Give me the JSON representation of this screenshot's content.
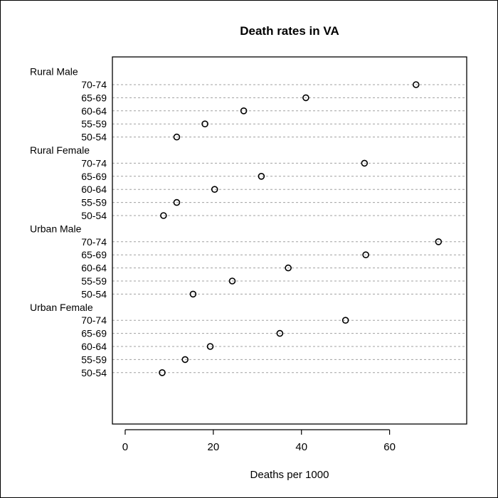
{
  "chart_data": {
    "type": "scatter",
    "title": "Death rates in VA",
    "xlabel": "Deaths per 1000",
    "ylabel": "",
    "xlim": [
      -2.9,
      77.5
    ],
    "xticks": [
      0,
      20,
      40,
      60
    ],
    "grid": true,
    "legend": "none",
    "groups": [
      {
        "name": "Rural Male",
        "rows": [
          {
            "label": "70-74",
            "value": 66.0
          },
          {
            "label": "65-69",
            "value": 41.0
          },
          {
            "label": "60-64",
            "value": 26.9
          },
          {
            "label": "55-59",
            "value": 18.1
          },
          {
            "label": "50-54",
            "value": 11.7
          }
        ]
      },
      {
        "name": "Rural Female",
        "rows": [
          {
            "label": "70-74",
            "value": 54.3
          },
          {
            "label": "65-69",
            "value": 30.9
          },
          {
            "label": "60-64",
            "value": 20.3
          },
          {
            "label": "55-59",
            "value": 11.7
          },
          {
            "label": "50-54",
            "value": 8.7
          }
        ]
      },
      {
        "name": "Urban Male",
        "rows": [
          {
            "label": "70-74",
            "value": 71.1
          },
          {
            "label": "65-69",
            "value": 54.6
          },
          {
            "label": "60-64",
            "value": 37.0
          },
          {
            "label": "55-59",
            "value": 24.3
          },
          {
            "label": "50-54",
            "value": 15.4
          }
        ]
      },
      {
        "name": "Urban Female",
        "rows": [
          {
            "label": "70-74",
            "value": 50.0
          },
          {
            "label": "65-69",
            "value": 35.1
          },
          {
            "label": "60-64",
            "value": 19.3
          },
          {
            "label": "55-59",
            "value": 13.6
          },
          {
            "label": "50-54",
            "value": 8.4
          }
        ]
      }
    ],
    "colors": {
      "points": "#000000",
      "grid": "#a0a0a0",
      "axis": "#000000"
    }
  }
}
